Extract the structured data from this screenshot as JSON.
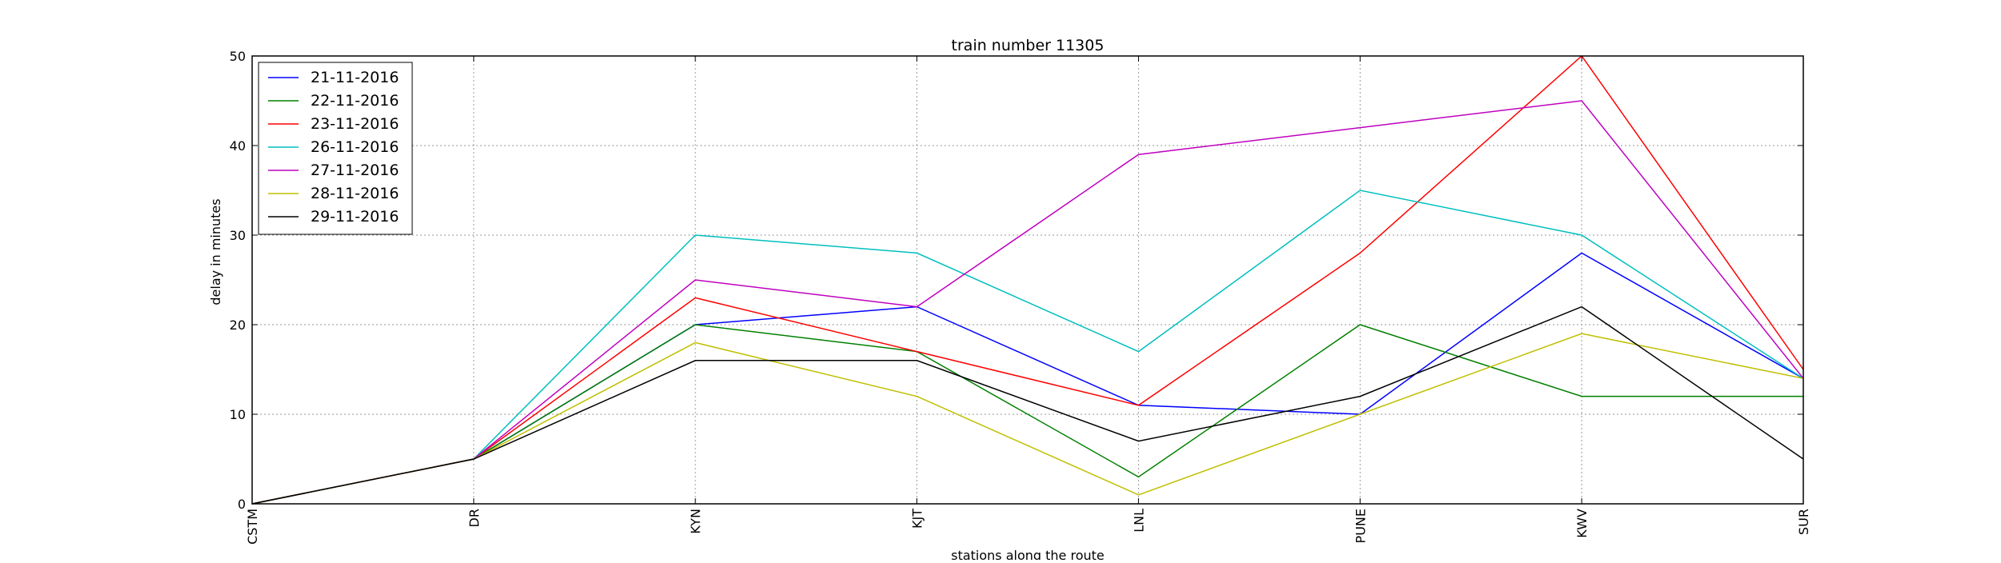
{
  "chart_data": {
    "type": "line",
    "title": "train number 11305",
    "xlabel": "stations along the route",
    "ylabel": "delay in minutes",
    "categories": [
      "CSTM",
      "DR",
      "KYN",
      "KJT",
      "LNL",
      "PUNE",
      "KWV",
      "SUR"
    ],
    "ylim": [
      0,
      50
    ],
    "yticks": [
      0,
      10,
      20,
      30,
      40,
      50
    ],
    "grid": true,
    "legend_position": "top-left",
    "series": [
      {
        "name": "21-11-2016",
        "color": "#0000ff",
        "values": [
          0,
          5,
          20,
          22,
          11,
          10,
          28,
          14
        ]
      },
      {
        "name": "22-11-2016",
        "color": "#008000",
        "values": [
          0,
          5,
          20,
          17,
          3,
          20,
          12,
          12
        ]
      },
      {
        "name": "23-11-2016",
        "color": "#ff0000",
        "values": [
          0,
          5,
          23,
          17,
          11,
          28,
          50,
          15
        ]
      },
      {
        "name": "26-11-2016",
        "color": "#00bfbf",
        "values": [
          0,
          5,
          30,
          28,
          17,
          35,
          30,
          14
        ]
      },
      {
        "name": "27-11-2016",
        "color": "#bf00bf",
        "values": [
          0,
          5,
          25,
          22,
          39,
          42,
          45,
          14
        ]
      },
      {
        "name": "28-11-2016",
        "color": "#bfbf00",
        "values": [
          0,
          5,
          18,
          12,
          1,
          10,
          19,
          14
        ]
      },
      {
        "name": "29-11-2016",
        "color": "#000000",
        "values": [
          0,
          5,
          16,
          16,
          7,
          12,
          22,
          5
        ]
      }
    ]
  }
}
